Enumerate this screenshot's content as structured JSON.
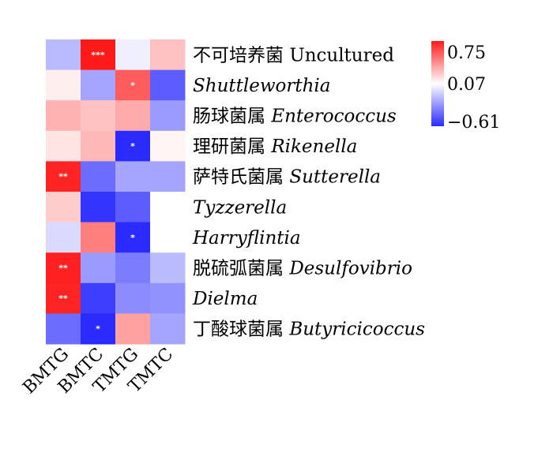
{
  "chart_data": {
    "type": "heatmap",
    "columns": [
      "BMTG",
      "BMTC",
      "TMTG",
      "TMTC"
    ],
    "rows": [
      {
        "cn": "不可培养菌",
        "lat": "Uncultured",
        "lat_italic": false
      },
      {
        "cn": "",
        "lat": "Shuttleworthia",
        "lat_italic": true
      },
      {
        "cn": "肠球菌属",
        "lat": "Enterococcus",
        "lat_italic": true
      },
      {
        "cn": "理研菌属",
        "lat": "Rikenella",
        "lat_italic": true
      },
      {
        "cn": "萨特氏菌属",
        "lat": "Sutterella",
        "lat_italic": true
      },
      {
        "cn": "",
        "lat": "Tyzzerella",
        "lat_italic": true
      },
      {
        "cn": "",
        "lat": "Harryflintia",
        "lat_italic": true
      },
      {
        "cn": "脱硫弧菌属",
        "lat": "Desulfovibrio",
        "lat_italic": true
      },
      {
        "cn": "",
        "lat": "Dielma",
        "lat_italic": true
      },
      {
        "cn": "丁酸球菌属",
        "lat": "Butyricicoccus",
        "lat_italic": true
      }
    ],
    "values": [
      [
        -0.15,
        0.75,
        0.02,
        0.25
      ],
      [
        0.12,
        -0.22,
        0.55,
        -0.45
      ],
      [
        0.3,
        0.25,
        0.32,
        -0.25
      ],
      [
        0.15,
        0.28,
        -0.61,
        0.1
      ],
      [
        0.72,
        -0.4,
        -0.22,
        -0.22
      ],
      [
        0.22,
        -0.58,
        -0.45,
        0.07
      ],
      [
        -0.05,
        0.45,
        -0.61,
        0.07
      ],
      [
        0.73,
        -0.25,
        -0.35,
        -0.15
      ],
      [
        0.72,
        -0.55,
        -0.3,
        -0.28
      ],
      [
        -0.4,
        -0.61,
        0.35,
        -0.22
      ]
    ],
    "significance": [
      [
        "",
        "***",
        "",
        ""
      ],
      [
        "",
        "",
        "*",
        ""
      ],
      [
        "",
        "",
        "",
        ""
      ],
      [
        "",
        "",
        "*",
        ""
      ],
      [
        "**",
        "",
        "",
        ""
      ],
      [
        "",
        "",
        "",
        ""
      ],
      [
        "",
        "",
        "*",
        ""
      ],
      [
        "**",
        "",
        "",
        ""
      ],
      [
        "**",
        "",
        "",
        ""
      ],
      [
        "",
        "*",
        "",
        ""
      ]
    ],
    "color_scale": {
      "min": -0.61,
      "mid": 0.07,
      "max": 0.75,
      "tick_labels": [
        "0.75",
        "0.07",
        "−0.61"
      ],
      "low_color": "#2b2bff",
      "mid_color": "#ffffff",
      "high_color": "#ff1a1a"
    }
  }
}
